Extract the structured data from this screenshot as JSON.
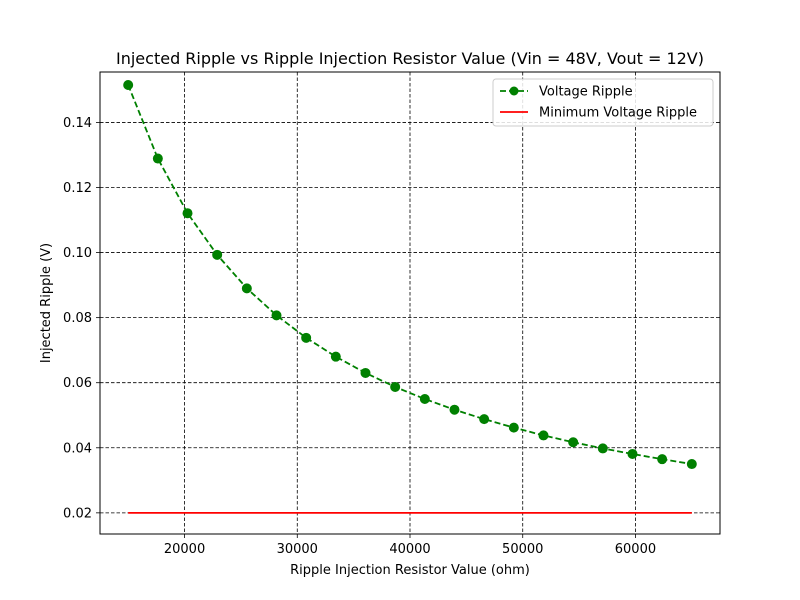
{
  "chart_data": {
    "type": "line",
    "title": "Injected Ripple vs Ripple Injection Resistor Value (Vin = 48V, Vout = 12V)",
    "xlabel": "Ripple Injection Resistor Value (ohm)",
    "ylabel": "Injected Ripple (V)",
    "xlim": [
      12500,
      67500
    ],
    "ylim": [
      0.0135,
      0.1555
    ],
    "xticks": [
      20000,
      30000,
      40000,
      50000,
      60000
    ],
    "yticks": [
      0.02,
      0.04,
      0.06,
      0.08,
      0.1,
      0.12,
      0.14
    ],
    "xtick_labels": [
      "20000",
      "30000",
      "40000",
      "50000",
      "60000"
    ],
    "ytick_labels": [
      "0.02",
      "0.04",
      "0.06",
      "0.08",
      "0.10",
      "0.12",
      "0.14"
    ],
    "grid": true,
    "legend_position": "top-right",
    "series": [
      {
        "name": "Voltage Ripple",
        "style": "dashed-with-markers",
        "color": "#008000",
        "x": [
          15000,
          17632,
          20263,
          22895,
          25526,
          28158,
          30789,
          33421,
          36053,
          38684,
          41316,
          43947,
          46579,
          49211,
          51842,
          54474,
          57105,
          59737,
          62368,
          65000
        ],
        "y": [
          0.1515,
          0.1289,
          0.1121,
          0.0993,
          0.089,
          0.0807,
          0.0738,
          0.068,
          0.063,
          0.0587,
          0.055,
          0.0517,
          0.0488,
          0.0462,
          0.0438,
          0.0417,
          0.0398,
          0.0381,
          0.0365,
          0.035
        ]
      },
      {
        "name": "Minimum Voltage Ripple",
        "style": "solid",
        "color": "#ff0000",
        "x": [
          15000,
          65000
        ],
        "y": [
          0.02,
          0.02
        ]
      }
    ]
  }
}
